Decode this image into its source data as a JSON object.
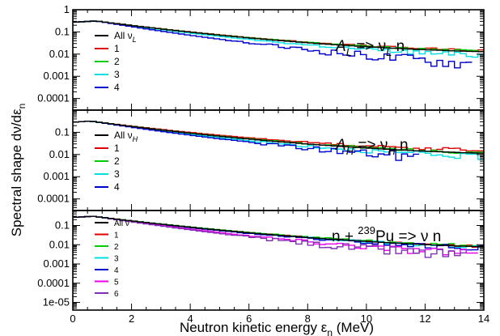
{
  "figure": {
    "xlabel_main": "Neutron kinetic energy ε",
    "xlabel_sub": "n",
    "xlabel_unit": " (MeV)",
    "ylabel_main": "Spectral shape dν/dε",
    "ylabel_sub": "n"
  },
  "chart_data": [
    {
      "type": "line",
      "x_range": [
        0,
        14
      ],
      "ylim": [
        3e-05,
        1.0
      ],
      "yscale": "log",
      "x_ticks": [
        0,
        2,
        4,
        6,
        8,
        10,
        12,
        14
      ],
      "y_ticks": [
        {
          "value": 1,
          "label": "1"
        },
        {
          "value": 0.1,
          "label": "0.1"
        },
        {
          "value": 0.01,
          "label": "0.01"
        },
        {
          "value": 0.001,
          "label": "0.001"
        },
        {
          "value": 0.0001,
          "label": "0.0001"
        }
      ],
      "annotation": {
        "a": "A",
        "a_sub": "L",
        "mid": " => ",
        "nu": "ν",
        "nu_sub": "L",
        "tail": " n"
      },
      "legend": [
        {
          "label": "All ν",
          "sub": "L",
          "color": "#000000"
        },
        {
          "label": "1",
          "color": "#e00000"
        },
        {
          "label": "2",
          "color": "#00cc00"
        },
        {
          "label": "3",
          "color": "#00e0e0"
        },
        {
          "label": "4",
          "color": "#0000cc"
        }
      ],
      "series": [
        {
          "name": "All ν_L",
          "color": "#000000",
          "step": 0.2,
          "a": 0.31,
          "b": 0.4,
          "x_peak": 0.8,
          "x_end": 14.0,
          "noise": 0.0
        },
        {
          "name": "1",
          "color": "#e00000",
          "step": 0.2,
          "a": 0.31,
          "b": 0.39,
          "x_peak": 0.8,
          "x_end": 14.0,
          "noise": 0.1
        },
        {
          "name": "2",
          "color": "#00cc00",
          "step": 0.2,
          "a": 0.31,
          "b": 0.395,
          "x_peak": 0.8,
          "x_end": 14.0,
          "noise": 0.1
        },
        {
          "name": "3",
          "color": "#00e0e0",
          "step": 0.2,
          "a": 0.31,
          "b": 0.43,
          "x_peak": 0.8,
          "x_end": 14.0,
          "noise": 0.25
        },
        {
          "name": "4",
          "color": "#0000cc",
          "step": 0.2,
          "a": 0.31,
          "b": 0.5,
          "x_peak": 0.8,
          "x_end": 13.6,
          "noise": 0.6
        }
      ]
    },
    {
      "type": "line",
      "x_range": [
        0,
        14
      ],
      "ylim": [
        3e-05,
        1.0
      ],
      "yscale": "log",
      "x_ticks": [
        0,
        2,
        4,
        6,
        8,
        10,
        12,
        14
      ],
      "y_ticks": [
        {
          "value": 0.1,
          "label": "0.1"
        },
        {
          "value": 0.01,
          "label": "0.01"
        },
        {
          "value": 0.001,
          "label": "0.001"
        },
        {
          "value": 0.0001,
          "label": "0.0001"
        }
      ],
      "annotation": {
        "a": "A",
        "a_sub": "H",
        "mid": " => ",
        "nu": "ν",
        "nu_sub": "H",
        "tail": " n"
      },
      "legend": [
        {
          "label": "All ν",
          "sub": "H",
          "color": "#000000"
        },
        {
          "label": "1",
          "color": "#e00000"
        },
        {
          "label": "2",
          "color": "#00cc00"
        },
        {
          "label": "3",
          "color": "#00e0e0"
        },
        {
          "label": "4",
          "color": "#0000cc"
        }
      ],
      "series": [
        {
          "name": "All ν_H",
          "color": "#000000",
          "step": 0.2,
          "a": 0.32,
          "b": 0.41,
          "x_peak": 0.6,
          "x_end": 14.0,
          "noise": 0.0
        },
        {
          "name": "1",
          "color": "#e00000",
          "step": 0.2,
          "a": 0.32,
          "b": 0.385,
          "x_peak": 0.6,
          "x_end": 14.0,
          "noise": 0.15
        },
        {
          "name": "2",
          "color": "#00cc00",
          "step": 0.2,
          "a": 0.32,
          "b": 0.405,
          "x_peak": 0.6,
          "x_end": 14.0,
          "noise": 0.15
        },
        {
          "name": "3",
          "color": "#00e0e0",
          "step": 0.2,
          "a": 0.32,
          "b": 0.44,
          "x_peak": 0.6,
          "x_end": 14.0,
          "noise": 0.3
        },
        {
          "name": "4",
          "color": "#0000cc",
          "step": 0.2,
          "a": 0.32,
          "b": 0.47,
          "x_peak": 0.6,
          "x_end": 11.8,
          "noise": 0.6
        }
      ]
    },
    {
      "type": "line",
      "x_range": [
        0,
        14
      ],
      "ylim": [
        4e-06,
        0.6
      ],
      "yscale": "log",
      "x_ticks": [
        0,
        2,
        4,
        6,
        8,
        10,
        12,
        14
      ],
      "x_tick_labels": [
        "0",
        "2",
        "4",
        "6",
        "8",
        "10",
        "12",
        "14"
      ],
      "y_ticks": [
        {
          "value": 0.1,
          "label": "0.1"
        },
        {
          "value": 0.01,
          "label": "0.01"
        },
        {
          "value": 0.001,
          "label": "0.001"
        },
        {
          "value": 0.0001,
          "label": "0.0001"
        },
        {
          "value": 1e-05,
          "label": "1e-05"
        }
      ],
      "annotation": {
        "pre": "n + ",
        "sup": "239",
        "elem": "Pu",
        "mid": " => ",
        "nu": "ν",
        "tail": " n"
      },
      "legend": [
        {
          "label": "All ν",
          "color": "#000000"
        },
        {
          "label": "1",
          "color": "#e00000"
        },
        {
          "label": "2",
          "color": "#00cc00"
        },
        {
          "label": "3",
          "color": "#00e0e0"
        },
        {
          "label": "4",
          "color": "#0000cc"
        },
        {
          "label": "5",
          "color": "#ee00ee"
        },
        {
          "label": "6",
          "color": "#8030b0"
        }
      ],
      "series": [
        {
          "name": "All ν",
          "color": "#000000",
          "step": 0.2,
          "a": 0.3,
          "b": 0.435,
          "x_peak": 0.7,
          "x_end": 14.0,
          "noise": 0.0
        },
        {
          "name": "1",
          "color": "#e00000",
          "step": 0.2,
          "a": 0.3,
          "b": 0.43,
          "x_peak": 0.7,
          "x_end": 14.0,
          "noise": 0.15
        },
        {
          "name": "2",
          "color": "#00cc00",
          "step": 0.2,
          "a": 0.3,
          "b": 0.425,
          "x_peak": 0.7,
          "x_end": 14.0,
          "noise": 0.15
        },
        {
          "name": "3",
          "color": "#00e0e0",
          "step": 0.2,
          "a": 0.3,
          "b": 0.44,
          "x_peak": 0.7,
          "x_end": 14.0,
          "noise": 0.2
        },
        {
          "name": "4",
          "color": "#0000cc",
          "step": 0.2,
          "a": 0.3,
          "b": 0.45,
          "x_peak": 0.7,
          "x_end": 14.0,
          "noise": 0.3
        },
        {
          "name": "5",
          "color": "#ee00ee",
          "step": 0.2,
          "a": 0.3,
          "b": 0.5,
          "x_peak": 0.7,
          "x_end": 13.8,
          "noise": 0.5
        },
        {
          "name": "6",
          "color": "#8030b0",
          "step": 0.2,
          "a": 0.3,
          "b": 0.53,
          "x_peak": 0.7,
          "x_end": 13.4,
          "noise": 0.7
        }
      ]
    }
  ]
}
